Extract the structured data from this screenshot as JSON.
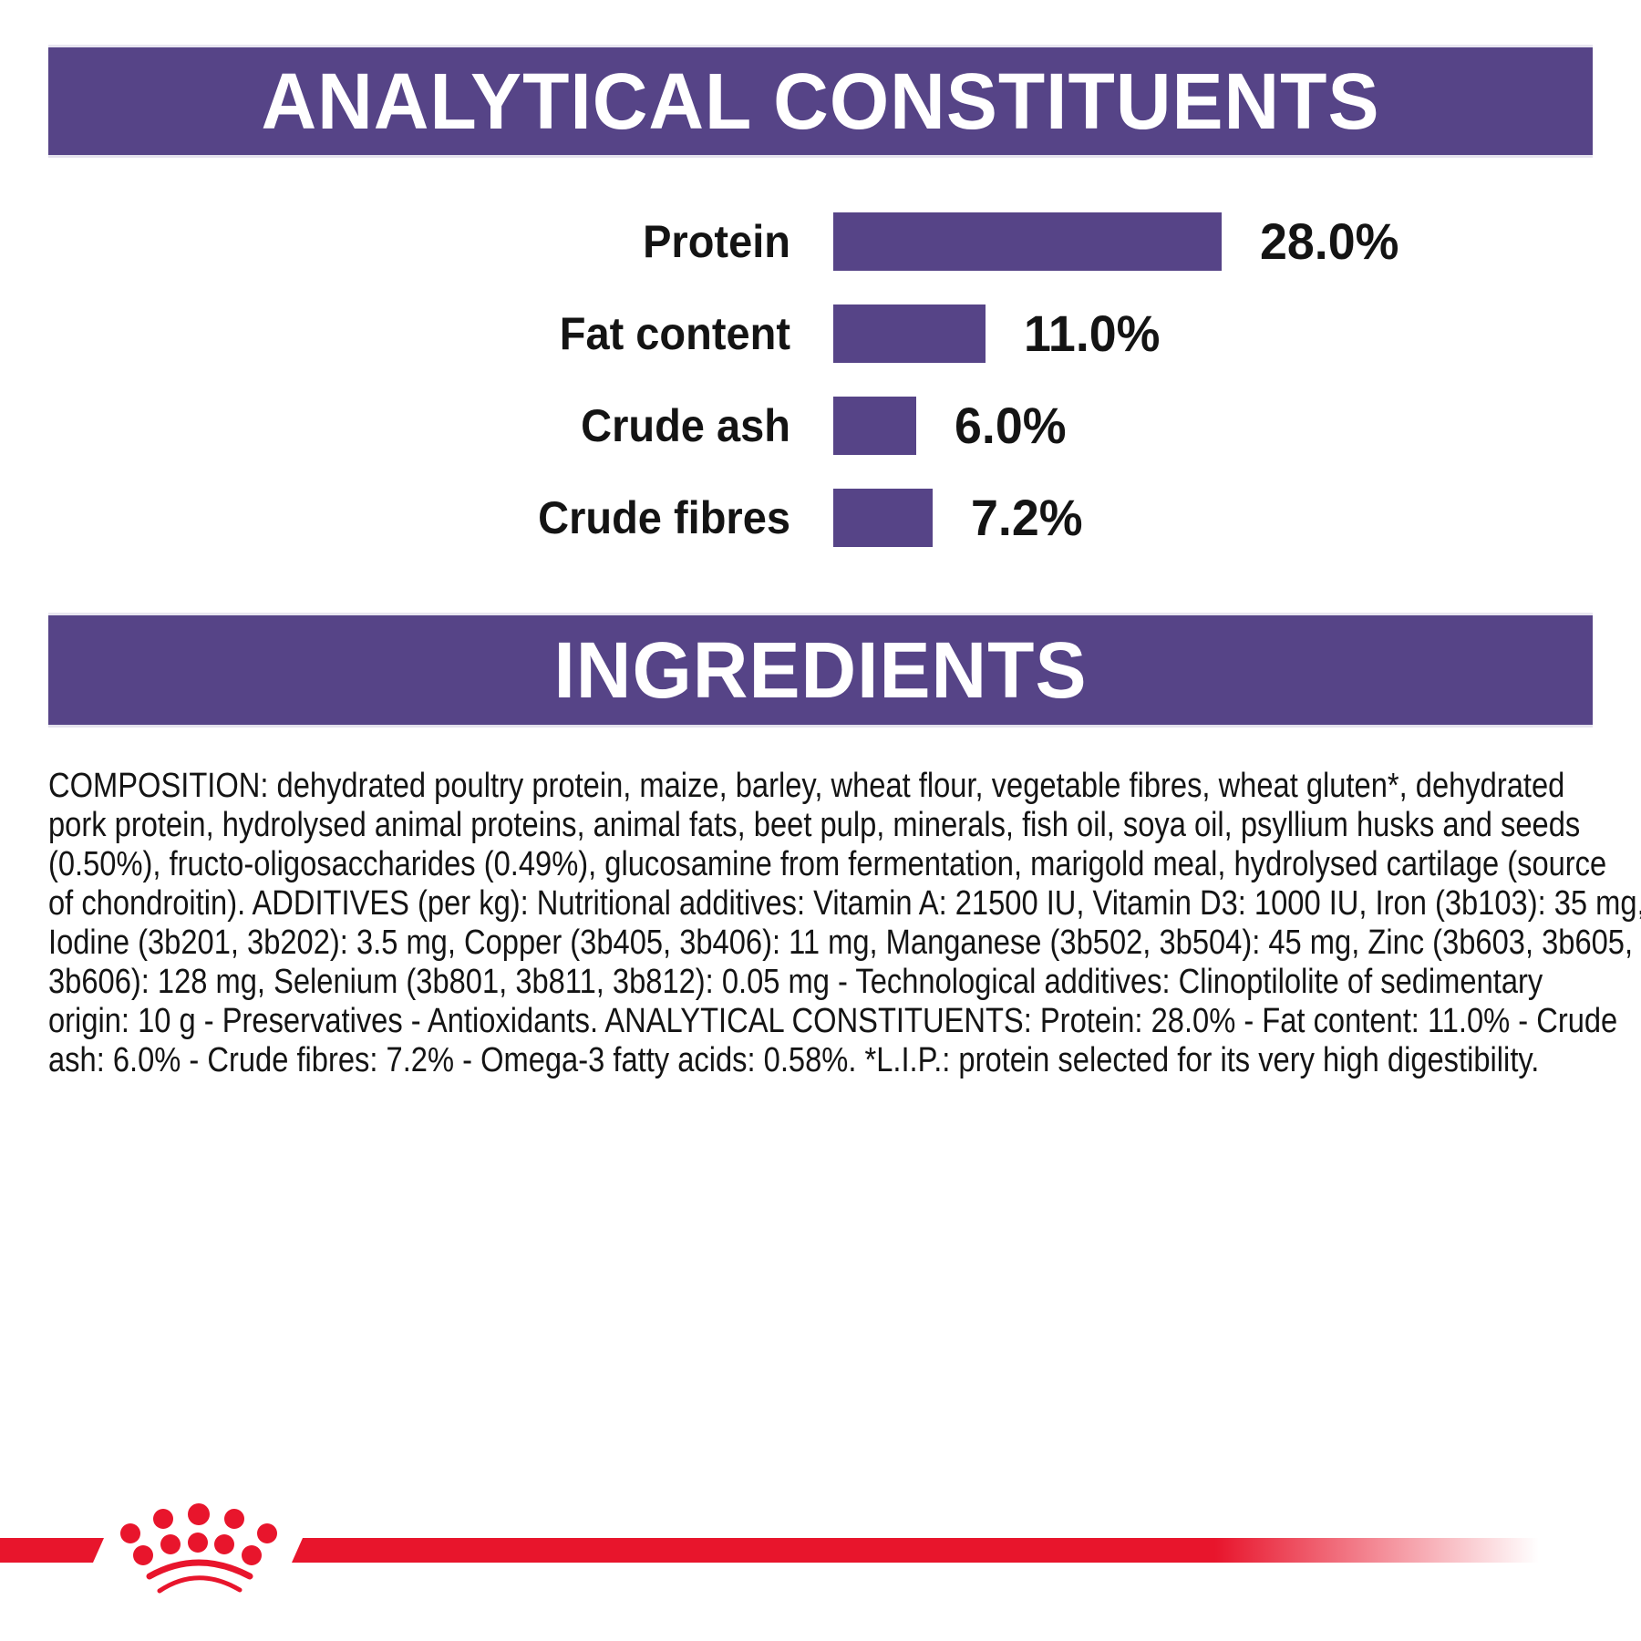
{
  "colors": {
    "page_bg": "#ffffff",
    "purple": "#564487",
    "red": "#e8152c",
    "text": "#141414",
    "header_text": "#ffffff"
  },
  "analytical_section": {
    "title": "ANALYTICAL CONSTITUENTS"
  },
  "chart_data": {
    "type": "bar",
    "orientation": "horizontal",
    "categories": [
      "Protein",
      "Fat content",
      "Crude ash",
      "Crude fibres"
    ],
    "values": [
      28.0,
      11.0,
      6.0,
      7.2
    ],
    "value_labels": [
      "28.0%",
      "11.0%",
      "6.0%",
      "7.2%"
    ],
    "unit": "%",
    "xlim": [
      0,
      30
    ],
    "grid": false,
    "bar_color": "#564487",
    "value_label_position": "right-of-bar",
    "category_label_position": "left-of-bar"
  },
  "ingredients_section": {
    "title": "INGREDIENTS",
    "lines": [
      "COMPOSITION: dehydrated poultry protein, maize, barley, wheat flour, vegetable fibres, wheat gluten*, dehydrated",
      "pork protein, hydrolysed animal proteins, animal fats, beet pulp, minerals, fish oil, soya oil, psyllium husks and seeds",
      "(0.50%), fructo-oligosaccharides (0.49%), glucosamine from fermentation, marigold meal, hydrolysed cartilage (source",
      "of chondroitin). ADDITIVES (per kg): Nutritional additives: Vitamin A: 21500 IU, Vitamin D3: 1000 IU, Iron (3b103): 35 mg,",
      "Iodine (3b201, 3b202): 3.5 mg, Copper (3b405, 3b406): 11 mg, Manganese (3b502, 3b504): 45 mg, Zinc (3b603, 3b605,",
      "3b606): 128 mg, Selenium (3b801, 3b811, 3b812): 0.05 mg - Technological additives: Clinoptilolite of sedimentary",
      "origin: 10 g - Preservatives - Antioxidants. ANALYTICAL CONSTITUENTS: Protein: 28.0% - Fat content: 11.0% - Crude",
      "ash: 6.0% - Crude fibres: 7.2% - Omega-3 fatty acids: 0.58%. *L.I.P.: protein selected for its very high digestibility."
    ]
  },
  "footer": {
    "brand_mark": "royal-canin-crown"
  }
}
